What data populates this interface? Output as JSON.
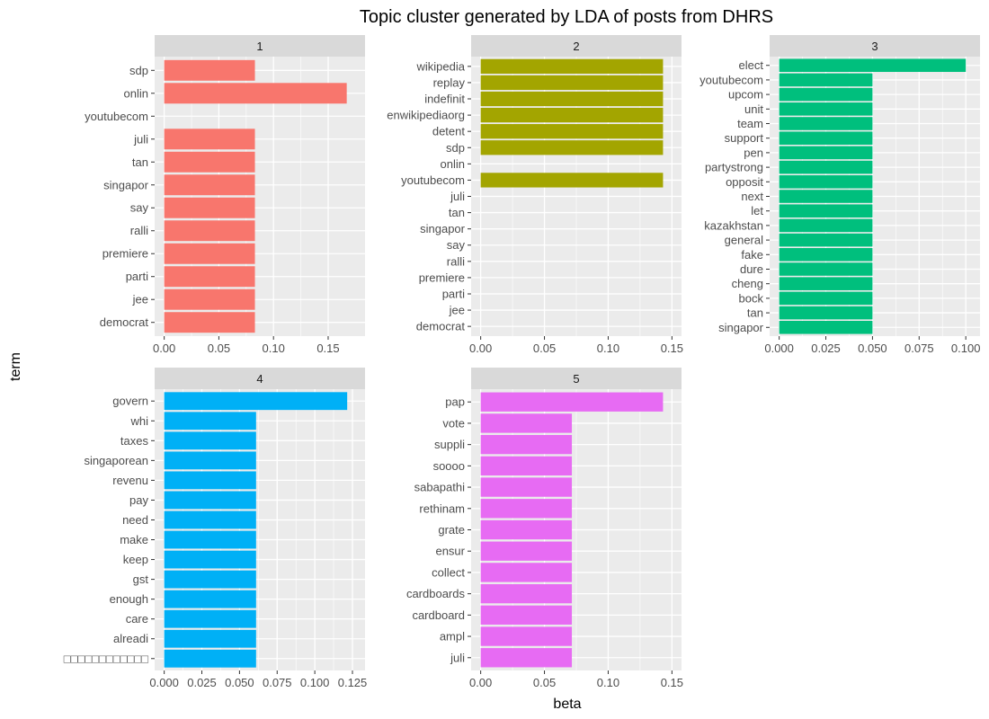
{
  "chart_data": {
    "type": "bar",
    "orientation": "horizontal",
    "title": "Topic cluster generated by LDA of posts from DHRS",
    "xlabel": "beta",
    "ylabel": "term",
    "grid": true,
    "legend": "none",
    "facets": [
      {
        "label": "1",
        "color": "#F8766D",
        "xlim": [
          0,
          0.175
        ],
        "ticks": [
          0,
          0.05,
          0.1,
          0.15
        ],
        "tick_labels": [
          "0.00",
          "0.05",
          "0.10",
          "0.15"
        ],
        "categories": [
          "sdp",
          "onlin",
          "youtubecom",
          "juli",
          "tan",
          "singapor",
          "say",
          "ralli",
          "premiere",
          "parti",
          "jee",
          "democrat"
        ],
        "values": [
          0.083,
          0.167,
          0,
          0.083,
          0.083,
          0.083,
          0.083,
          0.083,
          0.083,
          0.083,
          0.083,
          0.083
        ]
      },
      {
        "label": "2",
        "color": "#A3A500",
        "xlim": [
          0,
          0.15
        ],
        "ticks": [
          0,
          0.05,
          0.1,
          0.15
        ],
        "tick_labels": [
          "0.00",
          "0.05",
          "0.10",
          "0.15"
        ],
        "categories": [
          "wikipedia",
          "replay",
          "indefinit",
          "enwikipediaorg",
          "detent",
          "sdp",
          "onlin",
          "youtubecom",
          "juli",
          "tan",
          "singapor",
          "say",
          "ralli",
          "premiere",
          "parti",
          "jee",
          "democrat"
        ],
        "values": [
          0.143,
          0.143,
          0.143,
          0.143,
          0.143,
          0.143,
          0,
          0.143,
          0,
          0,
          0,
          0,
          0,
          0,
          0,
          0,
          0
        ]
      },
      {
        "label": "3",
        "color": "#00BF7D",
        "xlim": [
          0,
          0.1025
        ],
        "ticks": [
          0,
          0.025,
          0.05,
          0.075,
          0.1
        ],
        "tick_labels": [
          "0.000",
          "0.025",
          "0.050",
          "0.075",
          "0.100"
        ],
        "categories": [
          "elect",
          "youtubecom",
          "upcom",
          "unit",
          "team",
          "support",
          "pen",
          "partystrong",
          "opposit",
          "next",
          "let",
          "kazakhstan",
          "general",
          "fake",
          "dure",
          "cheng",
          "bock",
          "tan",
          "singapor"
        ],
        "values": [
          0.1,
          0.05,
          0.05,
          0.05,
          0.05,
          0.05,
          0.05,
          0.05,
          0.05,
          0.05,
          0.05,
          0.05,
          0.05,
          0.05,
          0.05,
          0.05,
          0.05,
          0.05,
          0.05
        ]
      },
      {
        "label": "4",
        "color": "#00B0F6",
        "xlim": [
          0,
          0.127
        ],
        "ticks": [
          0,
          0.025,
          0.05,
          0.075,
          0.1,
          0.125
        ],
        "tick_labels": [
          "0.000",
          "0.025",
          "0.050",
          "0.075",
          "0.100",
          "0.125"
        ],
        "categories": [
          "govern",
          "whi",
          "taxes",
          "singaporean",
          "revenu",
          "pay",
          "need",
          "make",
          "keep",
          "gst",
          "enough",
          "care",
          "alreadi",
          "□□□□□□□□□□□□"
        ],
        "values": [
          0.1215,
          0.061,
          0.061,
          0.061,
          0.061,
          0.061,
          0.061,
          0.061,
          0.061,
          0.061,
          0.061,
          0.061,
          0.061,
          0.061
        ]
      },
      {
        "label": "5",
        "color": "#E76BF3",
        "xlim": [
          0,
          0.15
        ],
        "ticks": [
          0,
          0.05,
          0.1,
          0.15
        ],
        "tick_labels": [
          "0.00",
          "0.05",
          "0.10",
          "0.15"
        ],
        "categories": [
          "pap",
          "vote",
          "suppli",
          "soooo",
          "sabapathi",
          "rethinam",
          "grate",
          "ensur",
          "collect",
          "cardboards",
          "cardboard",
          "ampl",
          "juli"
        ],
        "values": [
          0.143,
          0.0715,
          0.0715,
          0.0715,
          0.0715,
          0.0715,
          0.0715,
          0.0715,
          0.0715,
          0.0715,
          0.0715,
          0.0715,
          0.0715
        ]
      }
    ]
  }
}
